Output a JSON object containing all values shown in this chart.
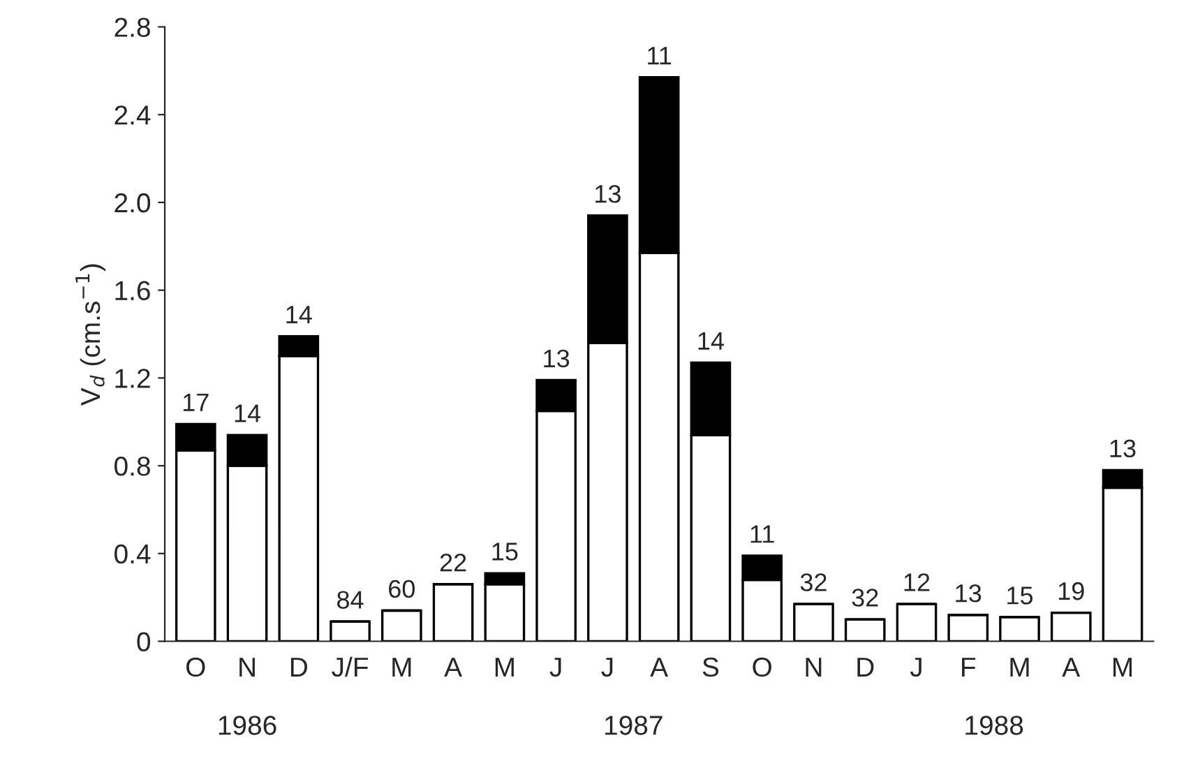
{
  "chart_data": {
    "type": "bar",
    "stacked": true,
    "ylabel": "V$_{d}$ (cm.s$^{−1}$)",
    "categories": [
      "O",
      "N",
      "D",
      "J/F",
      "M",
      "A",
      "M",
      "J",
      "J",
      "A",
      "S",
      "O",
      "N",
      "D",
      "J",
      "F",
      "M",
      "A",
      "M"
    ],
    "series": [
      {
        "color": "#ffffff",
        "values": [
          0.87,
          0.8,
          1.3,
          0.09,
          0.14,
          0.26,
          0.26,
          1.05,
          1.36,
          1.77,
          0.94,
          0.28,
          0.17,
          0.1,
          0.17,
          0.12,
          0.11,
          0.13,
          0.7
        ]
      },
      {
        "color": "#000000",
        "values": [
          0.12,
          0.14,
          0.09,
          0,
          0,
          0,
          0.05,
          0.14,
          0.58,
          0.8,
          0.33,
          0.11,
          0,
          0,
          0,
          0,
          0,
          0,
          0.08
        ]
      }
    ],
    "ylim": [
      0,
      2.8
    ],
    "yticks": [
      0,
      0.4,
      0.8,
      1.2,
      1.6,
      {
        "value": 2.0,
        "label": "2.0"
      },
      2.4,
      2.8
    ],
    "annotations": [
      "17",
      "14",
      "14",
      "84",
      "60",
      "22",
      "15",
      "13",
      "13",
      "11",
      "14",
      "11",
      "32",
      "32",
      "12",
      "13",
      "15",
      "19",
      "13",
      "1986",
      "1987",
      "1988"
    ],
    "grid": false,
    "legend": false
  }
}
